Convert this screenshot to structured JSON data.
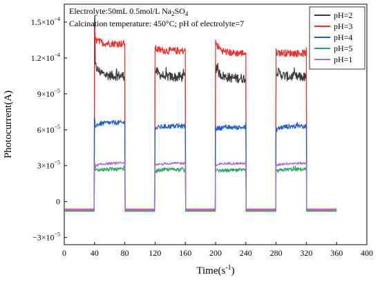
{
  "chart_data": {
    "type": "line",
    "title": "",
    "xlabel": "Time(s",
    "xlabel_sup": "-1",
    "xlabel_close": ")",
    "ylabel": "Photocurrent(A)",
    "xlim": [
      0,
      400
    ],
    "ylim": [
      -3.6e-05,
      0.000165
    ],
    "x_ticks": [
      0,
      40,
      80,
      120,
      160,
      200,
      240,
      280,
      320,
      360,
      400
    ],
    "x_tick_labels": [
      "0",
      "40",
      "80",
      "120",
      "160",
      "200",
      "240",
      "280",
      "320",
      "360",
      "400"
    ],
    "y_ticks": [
      {
        "value": -3e-05,
        "mant": "−3×10",
        "exp": "−5"
      },
      {
        "value": 0,
        "mant": "0",
        "exp": ""
      },
      {
        "value": 3e-05,
        "mant": "3×10",
        "exp": "−5"
      },
      {
        "value": 6e-05,
        "mant": "6×10",
        "exp": "−5"
      },
      {
        "value": 9e-05,
        "mant": "9×10",
        "exp": "−5"
      },
      {
        "value": 0.00012,
        "mant": "1.2×10",
        "exp": "−4"
      },
      {
        "value": 0.00015,
        "mant": "1.5×10",
        "exp": "−4"
      }
    ],
    "grid": false,
    "legend_position": "top-right",
    "annotations": {
      "line1_prefix": "Electrolyte:50mL 0.5mol/L Na",
      "line1_sub1": "2",
      "line1_mid": "SO",
      "line1_sub2": "4",
      "line2": "Calcination temperature: 450°C; pH of electrolyte=7"
    },
    "light_on_intervals": [
      [
        40,
        80
      ],
      [
        120,
        160
      ],
      [
        200,
        240
      ],
      [
        280,
        320
      ]
    ],
    "x_end": 360,
    "series": [
      {
        "name": "pH=2",
        "color": "#3a3a3a",
        "dark": -7e-06,
        "on_start": [
          0.000115,
          0.00011,
          0.000112,
          0.00011
        ],
        "on_end": [
          0.000105,
          0.000104,
          0.000103,
          0.000104
        ],
        "first_spike": 0.00015,
        "noise": 4e-06
      },
      {
        "name": "pH=3",
        "color": "#e8312a",
        "dark": -7e-06,
        "on_start": [
          0.000136,
          0.000128,
          0.000133,
          0.000125
        ],
        "on_end": [
          0.000132,
          0.000126,
          0.000124,
          0.000124
        ],
        "first_spike": 0.000142,
        "noise": 3e-06
      },
      {
        "name": "pH=4",
        "color": "#1f5fc4",
        "dark": -8e-06,
        "on_start": [
          6.3e-05,
          6.1e-05,
          6.1e-05,
          6e-05
        ],
        "on_end": [
          6.6e-05,
          6.3e-05,
          6.2e-05,
          6.3e-05
        ],
        "first_spike": 6.7e-05,
        "noise": 2e-06
      },
      {
        "name": "pH=5",
        "color": "#2ba55a",
        "dark": -8e-06,
        "on_start": [
          2.6e-05,
          2.5e-05,
          2.6e-05,
          2.5e-05
        ],
        "on_end": [
          2.7e-05,
          2.7e-05,
          2.6e-05,
          2.7e-05
        ],
        "first_spike": 2.9e-05,
        "noise": 1.5e-06
      },
      {
        "name": "pH=1",
        "color": "#a66bdb",
        "dark": -6e-06,
        "on_start": [
          2.9e-05,
          3e-05,
          3e-05,
          3e-05
        ],
        "on_end": [
          3.2e-05,
          3.2e-05,
          3.2e-05,
          3.2e-05
        ],
        "first_spike": 3.3e-05,
        "noise": 1e-06
      }
    ]
  }
}
